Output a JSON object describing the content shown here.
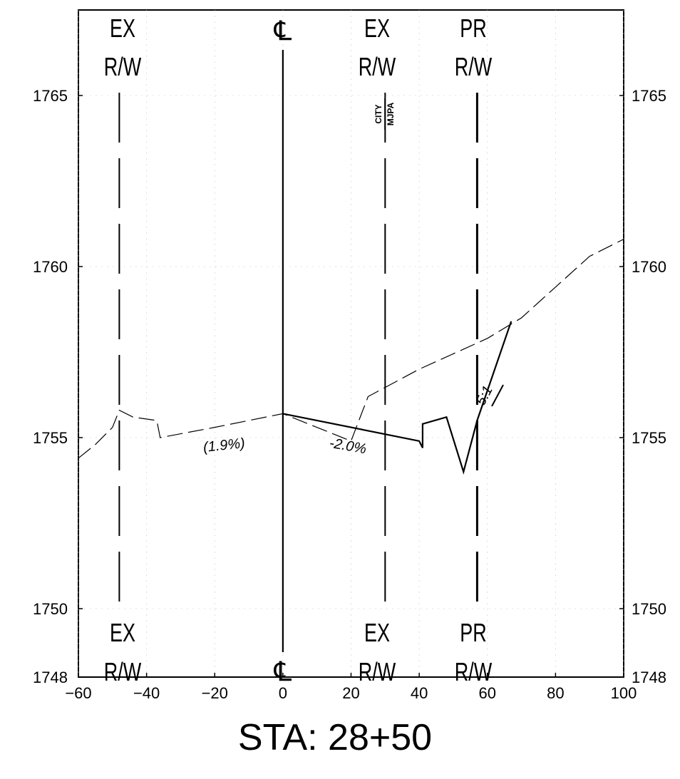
{
  "section": {
    "station_label": "STA:  28+50",
    "x_ticks": [
      "-60",
      "-40",
      "-20",
      "0",
      "20",
      "40",
      "60",
      "80",
      "100"
    ],
    "y_ticks": [
      "1765",
      "1760",
      "1755",
      "1750",
      "1748"
    ],
    "x_range": [
      -60,
      100
    ],
    "y_range": [
      1748,
      1767.5
    ],
    "grid": true
  },
  "row_labels": {
    "ex": "EX",
    "pr": "PR",
    "rw": "R/W",
    "cl": "℄"
  },
  "right_of_way_lines": [
    {
      "name": "ex-rw-left",
      "offset": -48,
      "top": "EX",
      "bottom": "R/W",
      "style": "dashed"
    },
    {
      "name": "centerline",
      "offset": 0,
      "top": "℄",
      "bottom": "",
      "style": "solid"
    },
    {
      "name": "ex-rw-right",
      "offset": 30,
      "top": "EX",
      "bottom": "R/W",
      "style": "dashed"
    },
    {
      "name": "pr-rw",
      "offset": 57,
      "top": "PR",
      "bottom": "R/W",
      "style": "dash-heavy"
    }
  ],
  "annotations": {
    "existing_slope": "(1.9%)",
    "proposed_slope": "-2.0%",
    "side_slope": "5:1",
    "city_label": "CITY",
    "mjpa_label": "MJPA"
  },
  "chart_data": {
    "type": "line",
    "xlabel": "",
    "ylabel": "",
    "xlim": [
      -60,
      100
    ],
    "ylim": [
      1748,
      1767.5
    ],
    "series": [
      {
        "style": "dashed",
        "x": [
          -60,
          -55,
          -50,
          -48,
          -44,
          -37,
          -36,
          -20,
          0,
          20,
          25,
          40,
          60,
          70,
          80,
          90,
          100
        ],
        "y": [
          1754.4,
          1754.8,
          1755.3,
          1755.8,
          1755.6,
          1755.5,
          1755.0,
          1755.3,
          1755.7,
          1754.9,
          1756.2,
          1757.0,
          1757.9,
          1758.5,
          1759.4,
          1760.3,
          1760.8
        ]
      },
      {
        "style": "solid",
        "x": [
          0,
          40,
          41,
          41,
          48,
          53,
          57,
          67
        ],
        "y": [
          1755.7,
          1754.9,
          1754.7,
          1755.4,
          1755.6,
          1754.0,
          1755.5,
          1758.4
        ]
      }
    ]
  }
}
